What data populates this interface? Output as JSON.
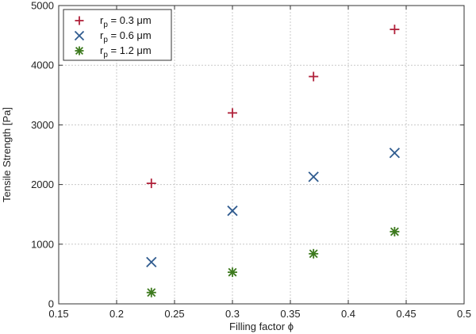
{
  "chart_data": {
    "type": "scatter",
    "title": "",
    "xlabel": "Filling factor ϕ",
    "ylabel": "Tensile Strength [Pa]",
    "xlim": [
      0.15,
      0.5
    ],
    "ylim": [
      0,
      5000
    ],
    "xticks": [
      0.15,
      0.2,
      0.25,
      0.3,
      0.35,
      0.4,
      0.45,
      0.5
    ],
    "yticks": [
      0,
      1000,
      2000,
      3000,
      4000,
      5000
    ],
    "xtick_labels": [
      "0.15",
      "0.2",
      "0.25",
      "0.3",
      "0.35",
      "0.4",
      "0.45",
      "0.5"
    ],
    "ytick_labels": [
      "0",
      "1000",
      "2000",
      "3000",
      "4000",
      "5000"
    ],
    "grid": true,
    "legend_position": "top-left",
    "series": [
      {
        "name": "r_p = 0.3 μm",
        "legend_main": "r",
        "legend_sub": "p",
        "legend_rest": " = 0.3 μm",
        "marker": "plus",
        "color": "#b0213a",
        "x": [
          0.23,
          0.3,
          0.37,
          0.44
        ],
        "y": [
          2020,
          3200,
          3810,
          4600
        ]
      },
      {
        "name": "r_p = 0.6 μm",
        "legend_main": "r",
        "legend_sub": "p",
        "legend_rest": " = 0.6 μm",
        "marker": "cross",
        "color": "#2f5b8f",
        "x": [
          0.23,
          0.3,
          0.37,
          0.44
        ],
        "y": [
          700,
          1560,
          2130,
          2530
        ]
      },
      {
        "name": "r_p = 1.2 μm",
        "legend_main": "r",
        "legend_sub": "p",
        "legend_rest": " = 1.2 μm",
        "marker": "asterisk",
        "color": "#3d7a1e",
        "x": [
          0.23,
          0.3,
          0.37,
          0.44
        ],
        "y": [
          190,
          530,
          840,
          1210
        ]
      }
    ]
  }
}
